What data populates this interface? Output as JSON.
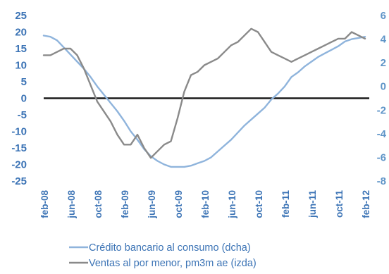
{
  "chart_data": {
    "type": "line",
    "x_ticks": [
      "feb-08",
      "jun-08",
      "oct-08",
      "feb-09",
      "jun-09",
      "oct-09",
      "feb-10",
      "jun-10",
      "oct-10",
      "feb-11",
      "jun-11",
      "oct-11",
      "feb-12"
    ],
    "y_left": {
      "ticks": [
        "25",
        "20",
        "15",
        "10",
        "5",
        "0",
        "-5",
        "-10",
        "-15",
        "-20",
        "-25"
      ],
      "range": [
        -25,
        25
      ]
    },
    "y_right": {
      "ticks": [
        "6",
        "4",
        "2",
        "0",
        "-2",
        "-4",
        "-6",
        "-8"
      ],
      "range": [
        -8,
        6
      ]
    },
    "zero_line": true,
    "legend_position": "bottom-left",
    "series": [
      {
        "name": "Crédito bancario al consumo (dcha)",
        "axis": "right",
        "color": "#8fb4dc",
        "x": [
          "feb-08",
          "mar-08",
          "apr-08",
          "may-08",
          "jun-08",
          "jul-08",
          "aug-08",
          "sep-08",
          "oct-08",
          "nov-08",
          "dec-08",
          "jan-09",
          "feb-09",
          "mar-09",
          "apr-09",
          "may-09",
          "jun-09",
          "jul-09",
          "aug-09",
          "sep-09",
          "oct-09",
          "nov-09",
          "dec-09",
          "jan-10",
          "feb-10",
          "mar-10",
          "apr-10",
          "may-10",
          "jun-10",
          "jul-10",
          "aug-10",
          "sep-10",
          "oct-10",
          "nov-10",
          "dec-10",
          "jan-11",
          "feb-11",
          "mar-11",
          "apr-11",
          "may-11",
          "jun-11",
          "jul-11",
          "aug-11",
          "sep-11",
          "oct-11",
          "nov-11",
          "dec-11",
          "jan-12",
          "feb-12"
        ],
        "values": [
          4.3,
          4.2,
          3.9,
          3.3,
          2.7,
          2.1,
          1.5,
          0.8,
          0.0,
          -0.7,
          -1.4,
          -2.1,
          -2.9,
          -3.8,
          -4.5,
          -5.3,
          -5.9,
          -6.3,
          -6.6,
          -6.8,
          -6.8,
          -6.8,
          -6.7,
          -6.5,
          -6.3,
          -6.0,
          -5.5,
          -5.0,
          -4.5,
          -3.9,
          -3.3,
          -2.8,
          -2.3,
          -1.8,
          -1.1,
          -0.6,
          0.0,
          0.8,
          1.2,
          1.7,
          2.1,
          2.5,
          2.8,
          3.1,
          3.4,
          3.8,
          4.0,
          4.1,
          4.2
        ]
      },
      {
        "name": "Ventas al por menor, pm3m ae (izda)",
        "axis": "left",
        "color": "#8a8a8a",
        "x": [
          "feb-08",
          "mar-08",
          "apr-08",
          "may-08",
          "jun-08",
          "jul-08",
          "aug-08",
          "sep-08",
          "oct-08",
          "nov-08",
          "dec-08",
          "jan-09",
          "feb-09",
          "mar-09",
          "apr-09",
          "may-09",
          "jun-09",
          "jul-09",
          "aug-09",
          "sep-09",
          "oct-09",
          "nov-09",
          "dec-09",
          "jan-10",
          "feb-10",
          "mar-10",
          "apr-10",
          "may-10",
          "jun-10",
          "jul-10",
          "aug-10",
          "sep-10",
          "oct-10",
          "nov-10",
          "dec-10",
          "jan-11",
          "feb-11",
          "mar-11",
          "apr-11",
          "may-11",
          "jun-11",
          "jul-11",
          "aug-11",
          "sep-11",
          "oct-11",
          "nov-11",
          "dec-11",
          "jan-12",
          "feb-12"
        ],
        "values": [
          13,
          13,
          14,
          15,
          15,
          13,
          9,
          4,
          -1,
          -4,
          -7,
          -11,
          -14,
          -14,
          -11,
          -15,
          -18,
          -16,
          -14,
          -13,
          -6,
          2,
          7,
          8,
          10,
          11,
          12,
          14,
          16,
          17,
          19,
          21,
          20,
          17,
          14,
          13,
          12,
          11,
          12,
          13,
          14,
          15,
          16,
          17,
          18,
          18,
          20,
          19,
          18
        ]
      }
    ]
  }
}
